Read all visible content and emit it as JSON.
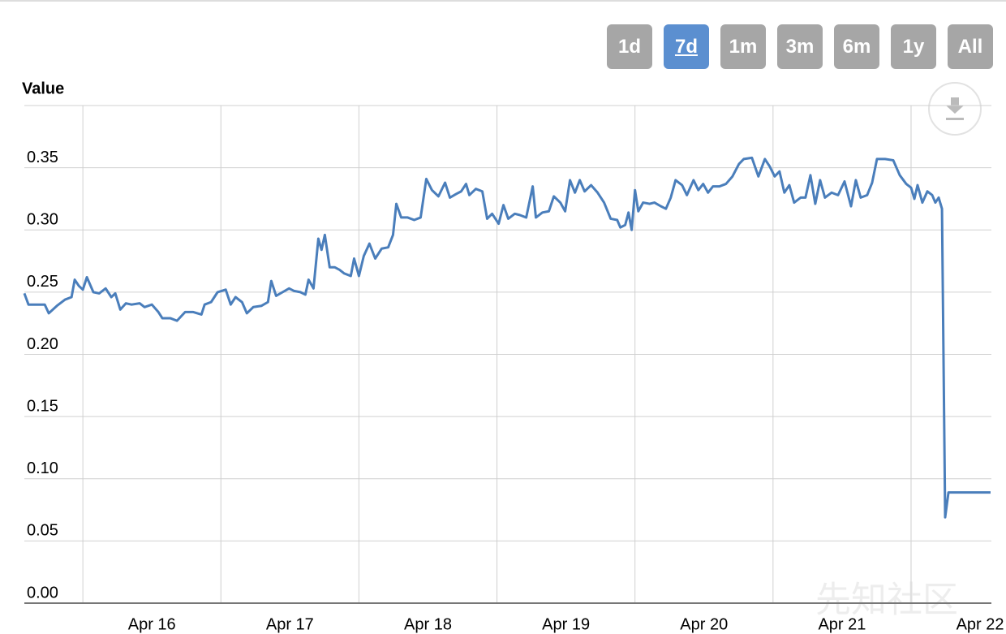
{
  "range_buttons": [
    "1d",
    "7d",
    "1m",
    "3m",
    "6m",
    "1y",
    "All"
  ],
  "selected_index": 1,
  "watermark": "先知社区",
  "chart_data": {
    "type": "line",
    "y_label": "Value",
    "color": "#4a7ebb",
    "grid": true,
    "xlim": [
      15.576,
      22.582
    ],
    "ylim": [
      0,
      0.4
    ],
    "yticks": [
      {
        "value": 0,
        "label": "0.00"
      },
      0.05,
      {
        "value": 0.1,
        "label": "0.10"
      },
      0.15,
      {
        "value": 0.2,
        "label": "0.20"
      },
      0.25,
      {
        "value": 0.3,
        "label": "0.30"
      },
      0.35
    ],
    "xticks": [
      {
        "value": 16,
        "label": "Apr 16"
      },
      {
        "value": 17,
        "label": "Apr 17"
      },
      {
        "value": 18,
        "label": "Apr 18"
      },
      {
        "value": 19,
        "label": "Apr 19"
      },
      {
        "value": 20,
        "label": "Apr 20"
      },
      {
        "value": 21,
        "label": "Apr 21"
      },
      {
        "value": 22,
        "label": "Apr 22"
      }
    ],
    "x": [
      15.576,
      15.606,
      15.665,
      15.724,
      15.753,
      15.812,
      15.871,
      15.918,
      15.941,
      15.971,
      16.0,
      16.029,
      16.076,
      16.118,
      16.165,
      16.206,
      16.235,
      16.271,
      16.312,
      16.353,
      16.412,
      16.447,
      16.5,
      16.547,
      16.576,
      16.635,
      16.682,
      16.741,
      16.8,
      16.859,
      16.882,
      16.929,
      16.976,
      17.035,
      17.071,
      17.106,
      17.153,
      17.188,
      17.235,
      17.294,
      17.341,
      17.365,
      17.4,
      17.447,
      17.494,
      17.529,
      17.576,
      17.612,
      17.635,
      17.671,
      17.706,
      17.729,
      17.753,
      17.788,
      17.824,
      17.859,
      17.894,
      17.941,
      17.965,
      18.0,
      18.035,
      18.076,
      18.118,
      18.165,
      18.212,
      18.247,
      18.271,
      18.306,
      18.353,
      18.4,
      18.447,
      18.488,
      18.529,
      18.576,
      18.624,
      18.659,
      18.706,
      18.741,
      18.776,
      18.8,
      18.847,
      18.894,
      18.929,
      18.965,
      19.012,
      19.047,
      19.082,
      19.129,
      19.165,
      19.212,
      19.259,
      19.282,
      19.329,
      19.376,
      19.412,
      19.459,
      19.494,
      19.529,
      19.565,
      19.6,
      19.635,
      19.682,
      19.729,
      19.776,
      19.824,
      19.871,
      19.894,
      19.929,
      19.953,
      19.976,
      20.0,
      20.024,
      20.059,
      20.106,
      20.141,
      20.188,
      20.224,
      20.259,
      20.294,
      20.341,
      20.376,
      20.424,
      20.459,
      20.494,
      20.529,
      20.565,
      20.612,
      20.659,
      20.706,
      20.753,
      20.788,
      20.847,
      20.894,
      20.941,
      20.976,
      21.012,
      21.047,
      21.082,
      21.118,
      21.153,
      21.2,
      21.235,
      21.271,
      21.306,
      21.341,
      21.376,
      21.424,
      21.471,
      21.518,
      21.565,
      21.6,
      21.635,
      21.682,
      21.718,
      21.753,
      21.812,
      21.871,
      21.918,
      21.965,
      22.0,
      22.024,
      22.047,
      22.082,
      22.118,
      22.153,
      22.176,
      22.2,
      22.224,
      22.247,
      22.271,
      22.341,
      22.459,
      22.576
    ],
    "values": [
      0.249,
      0.24,
      0.24,
      0.24,
      0.233,
      0.239,
      0.244,
      0.246,
      0.26,
      0.255,
      0.252,
      0.262,
      0.25,
      0.249,
      0.253,
      0.246,
      0.249,
      0.236,
      0.241,
      0.24,
      0.241,
      0.238,
      0.24,
      0.234,
      0.229,
      0.229,
      0.227,
      0.234,
      0.234,
      0.232,
      0.24,
      0.242,
      0.25,
      0.252,
      0.24,
      0.246,
      0.242,
      0.233,
      0.238,
      0.239,
      0.242,
      0.259,
      0.247,
      0.25,
      0.253,
      0.251,
      0.25,
      0.248,
      0.26,
      0.253,
      0.293,
      0.284,
      0.296,
      0.27,
      0.27,
      0.268,
      0.265,
      0.263,
      0.277,
      0.263,
      0.279,
      0.289,
      0.277,
      0.285,
      0.286,
      0.296,
      0.321,
      0.31,
      0.31,
      0.308,
      0.31,
      0.341,
      0.332,
      0.327,
      0.338,
      0.326,
      0.329,
      0.331,
      0.337,
      0.328,
      0.333,
      0.331,
      0.309,
      0.313,
      0.305,
      0.32,
      0.309,
      0.313,
      0.312,
      0.31,
      0.335,
      0.31,
      0.314,
      0.315,
      0.327,
      0.322,
      0.315,
      0.34,
      0.33,
      0.34,
      0.331,
      0.336,
      0.33,
      0.322,
      0.309,
      0.308,
      0.302,
      0.304,
      0.314,
      0.3,
      0.332,
      0.315,
      0.322,
      0.321,
      0.322,
      0.319,
      0.317,
      0.326,
      0.34,
      0.336,
      0.328,
      0.34,
      0.332,
      0.337,
      0.33,
      0.335,
      0.335,
      0.337,
      0.343,
      0.353,
      0.357,
      0.358,
      0.343,
      0.357,
      0.351,
      0.343,
      0.347,
      0.33,
      0.336,
      0.322,
      0.326,
      0.326,
      0.344,
      0.321,
      0.34,
      0.326,
      0.33,
      0.328,
      0.339,
      0.319,
      0.34,
      0.326,
      0.328,
      0.338,
      0.357,
      0.357,
      0.356,
      0.344,
      0.337,
      0.334,
      0.325,
      0.336,
      0.322,
      0.331,
      0.328,
      0.322,
      0.326,
      0.317,
      0.069,
      0.089,
      0.089,
      0.089,
      0.089
    ]
  }
}
